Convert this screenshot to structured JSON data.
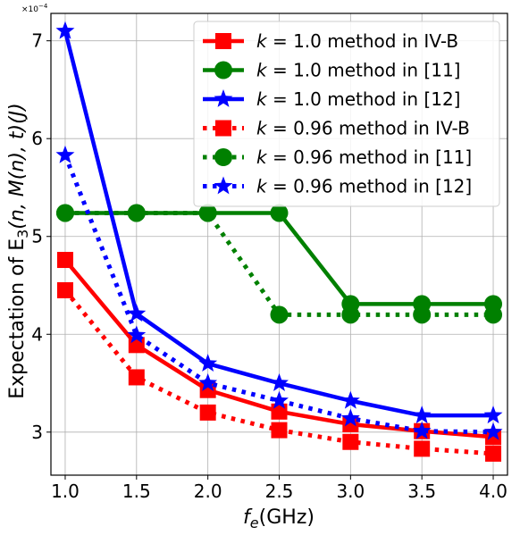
{
  "chart_data": {
    "type": "line",
    "xlabel_main": "f",
    "xlabel_sub": "e",
    "xlabel_unit": "(GHz)",
    "ylabel_main": "Expectation of E",
    "ylabel_sub": "3",
    "ylabel_args": "(n, M(n), t)(J)",
    "scale_mult": "×10",
    "scale_exp": "−4",
    "xlim": [
      0.9,
      4.1
    ],
    "ylim": [
      2.56,
      7.28
    ],
    "x": [
      1.0,
      1.5,
      2.0,
      2.5,
      3.0,
      3.5,
      4.0
    ],
    "x_tick_labels": [
      "1.0",
      "1.5",
      "2.0",
      "2.5",
      "3.0",
      "3.5",
      "4.0"
    ],
    "y_ticks": [
      3,
      4,
      5,
      6,
      7
    ],
    "y_tick_labels": [
      "3",
      "4",
      "5",
      "6",
      "7"
    ],
    "grid": true,
    "legend_position": "top-right",
    "series": [
      {
        "name": "k = 1.0 method in IV-B",
        "k_value": "1.0",
        "method": "method in IV-B",
        "color": "#ff0000",
        "marker": "square",
        "dash": "solid",
        "values": [
          4.76,
          3.89,
          3.43,
          3.21,
          3.08,
          3.01,
          2.95
        ]
      },
      {
        "name": "k = 1.0 method in [11]",
        "k_value": "1.0",
        "method": "method in [11]",
        "color": "#008000",
        "marker": "circle",
        "dash": "solid",
        "values": [
          5.24,
          5.24,
          5.24,
          5.24,
          4.31,
          4.31,
          4.31
        ]
      },
      {
        "name": "k = 1.0 method in [12]",
        "k_value": "1.0",
        "method": "method in [12]",
        "color": "#0000ff",
        "marker": "star",
        "dash": "solid",
        "values": [
          7.1,
          4.21,
          3.7,
          3.5,
          3.32,
          3.17,
          3.17
        ]
      },
      {
        "name": "k = 0.96 method in IV-B",
        "k_value": "0.96",
        "method": "method in IV-B",
        "color": "#ff0000",
        "marker": "square",
        "dash": "dotted",
        "values": [
          4.45,
          3.56,
          3.2,
          3.02,
          2.9,
          2.83,
          2.78
        ]
      },
      {
        "name": "k = 0.96 method in [11]",
        "k_value": "0.96",
        "method": "method in [11]",
        "color": "#008000",
        "marker": "circle",
        "dash": "dotted",
        "values": [
          5.24,
          5.24,
          5.24,
          4.2,
          4.2,
          4.2,
          4.2
        ]
      },
      {
        "name": "k = 0.96 method in [12]",
        "k_value": "0.96",
        "method": "method in [12]",
        "color": "#0000ff",
        "marker": "star",
        "dash": "dotted",
        "values": [
          5.83,
          3.99,
          3.5,
          3.32,
          3.14,
          3.01,
          3.0
        ]
      }
    ]
  }
}
